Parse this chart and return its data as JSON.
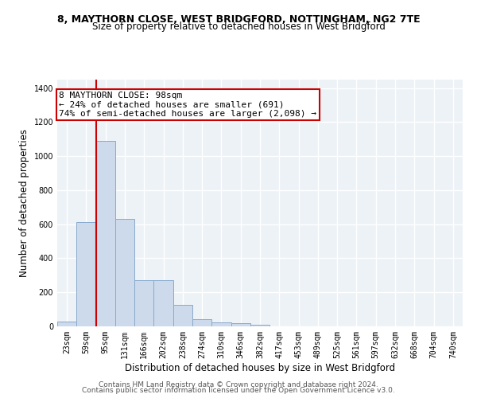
{
  "title": "8, MAYTHORN CLOSE, WEST BRIDGFORD, NOTTINGHAM, NG2 7TE",
  "subtitle": "Size of property relative to detached houses in West Bridgford",
  "xlabel": "Distribution of detached houses by size in West Bridgford",
  "ylabel": "Number of detached properties",
  "bar_color": "#ccdaeb",
  "bar_edge_color": "#88aacc",
  "categories": [
    "23sqm",
    "59sqm",
    "95sqm",
    "131sqm",
    "166sqm",
    "202sqm",
    "238sqm",
    "274sqm",
    "310sqm",
    "346sqm",
    "382sqm",
    "417sqm",
    "453sqm",
    "489sqm",
    "525sqm",
    "561sqm",
    "597sqm",
    "632sqm",
    "668sqm",
    "704sqm",
    "740sqm"
  ],
  "values": [
    30,
    615,
    1090,
    630,
    270,
    270,
    125,
    40,
    22,
    18,
    10,
    0,
    0,
    0,
    0,
    0,
    0,
    0,
    0,
    0,
    0
  ],
  "ylim": [
    0,
    1450
  ],
  "yticks": [
    0,
    200,
    400,
    600,
    800,
    1000,
    1200,
    1400
  ],
  "annotation_line1": "8 MAYTHORN CLOSE: 98sqm",
  "annotation_line2": "← 24% of detached houses are smaller (691)",
  "annotation_line3": "74% of semi-detached houses are larger (2,098) →",
  "vline_color": "#cc0000",
  "annotation_box_color": "#cc0000",
  "footer1": "Contains HM Land Registry data © Crown copyright and database right 2024.",
  "footer2": "Contains public sector information licensed under the Open Government Licence v3.0.",
  "background_color": "#edf2f7",
  "grid_color": "#ffffff",
  "title_fontsize": 9,
  "subtitle_fontsize": 8.5,
  "axis_label_fontsize": 8.5,
  "tick_fontsize": 7,
  "footer_fontsize": 6.5,
  "annotation_fontsize": 8
}
